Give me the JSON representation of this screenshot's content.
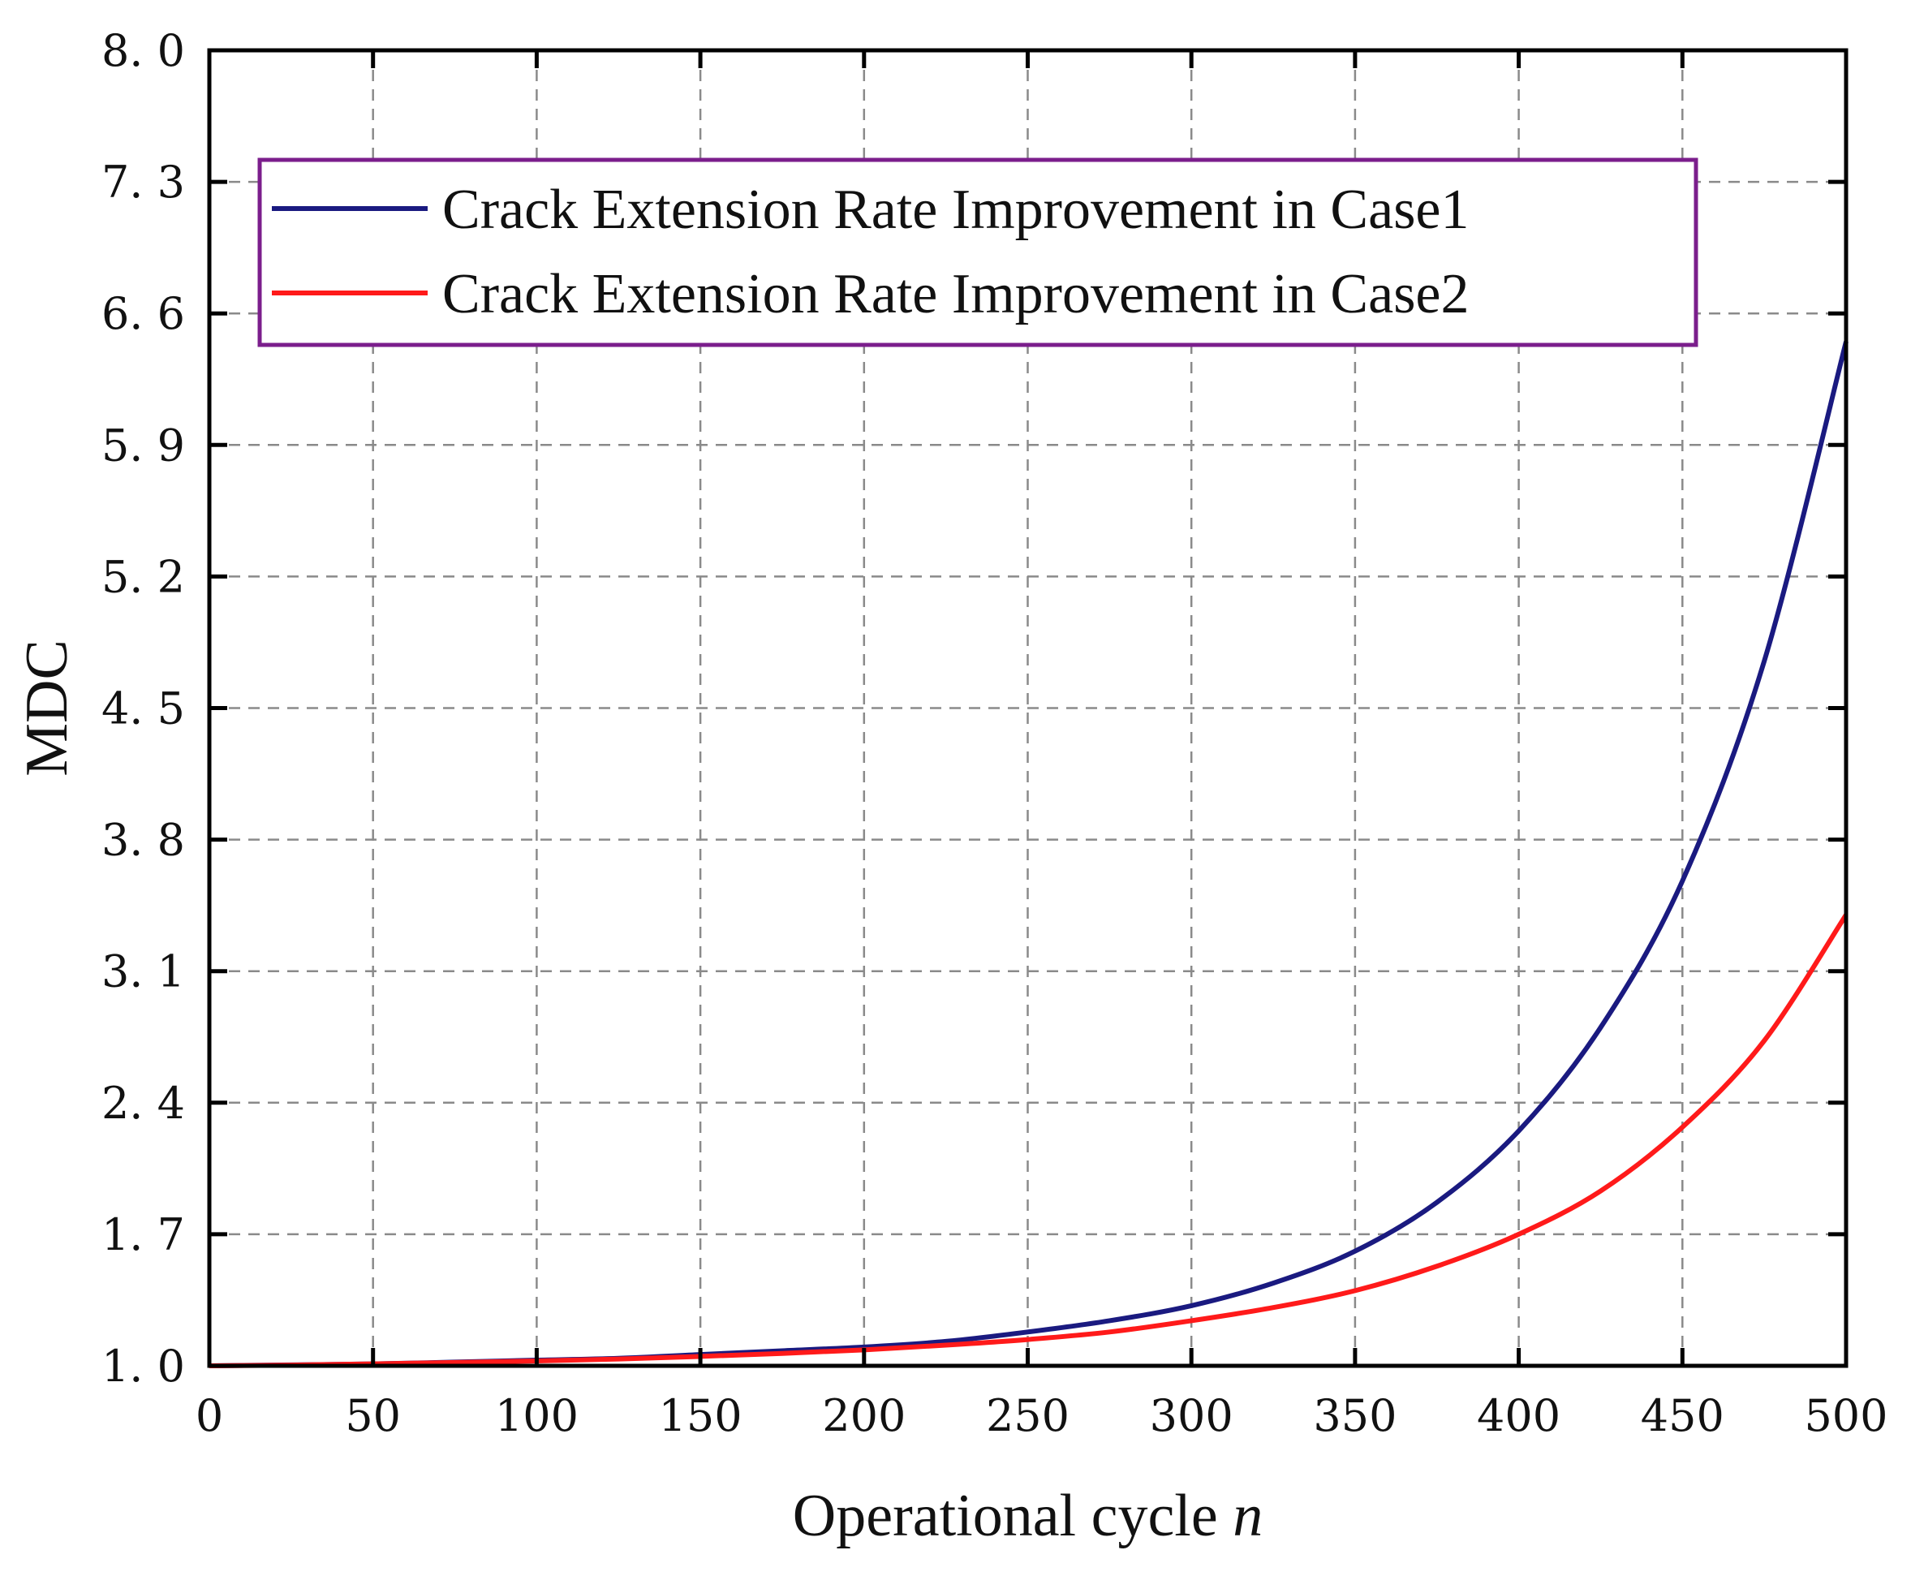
{
  "chart_data": {
    "type": "line",
    "xlabel": "Operational cycle",
    "xlabel_var": "n",
    "ylabel": "MDC",
    "xlim": [
      0,
      500
    ],
    "ylim": [
      1.0,
      8.0
    ],
    "xticks": [
      0,
      50,
      100,
      150,
      200,
      250,
      300,
      350,
      400,
      450,
      500
    ],
    "xtick_labels": [
      "0",
      "50",
      "100",
      "150",
      "200",
      "250",
      "300",
      "350",
      "400",
      "450",
      "500"
    ],
    "yticks": [
      1.0,
      1.7,
      2.4,
      3.1,
      3.8,
      4.5,
      5.2,
      5.9,
      6.6,
      7.3,
      8.0
    ],
    "ytick_labels": [
      "1. 0",
      "1. 7",
      "2. 4",
      "3. 1",
      "3. 8",
      "4. 5",
      "5. 2",
      "5. 9",
      "6. 6",
      "7. 3",
      "8. 0"
    ],
    "grid": true,
    "legend_position": "top-left",
    "legend_border_color": "#7b1e8c",
    "series": [
      {
        "name": "Crack Extension Rate Improvement in Case1",
        "color": "#1a1a80",
        "x": [
          0,
          25,
          50,
          75,
          100,
          125,
          150,
          175,
          200,
          225,
          250,
          275,
          300,
          325,
          350,
          375,
          400,
          425,
          450,
          475,
          500
        ],
        "values": [
          1.0,
          1.005,
          1.01,
          1.02,
          1.03,
          1.04,
          1.06,
          1.08,
          1.1,
          1.13,
          1.18,
          1.24,
          1.32,
          1.44,
          1.61,
          1.87,
          2.25,
          2.8,
          3.58,
          4.75,
          6.45
        ]
      },
      {
        "name": "Crack Extension Rate Improvement in Case2",
        "color": "#ff1a1a",
        "x": [
          0,
          25,
          50,
          75,
          100,
          125,
          150,
          175,
          200,
          225,
          250,
          275,
          300,
          325,
          350,
          375,
          400,
          425,
          450,
          475,
          500
        ],
        "values": [
          1.0,
          1.004,
          1.01,
          1.018,
          1.026,
          1.036,
          1.05,
          1.066,
          1.085,
          1.11,
          1.14,
          1.18,
          1.24,
          1.31,
          1.4,
          1.53,
          1.7,
          1.93,
          2.27,
          2.73,
          3.4
        ]
      }
    ]
  }
}
